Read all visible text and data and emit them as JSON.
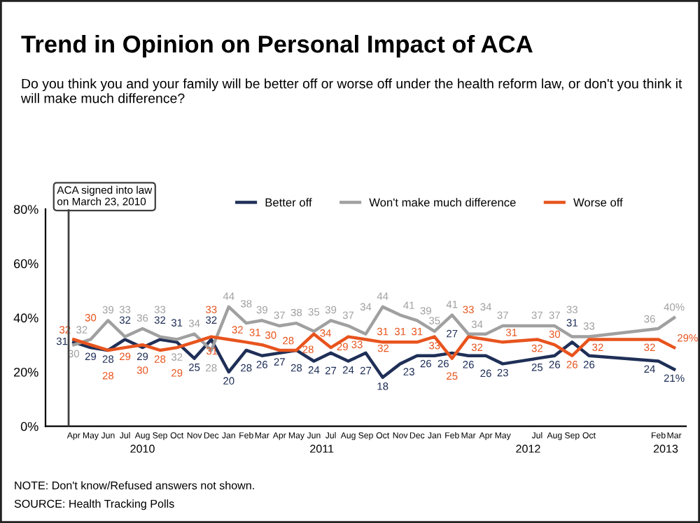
{
  "chart_data": {
    "type": "line",
    "title": "Trend in Opinion on Personal Impact of ACA",
    "subtitle": "Do you think you and your family will be better off or worse off under the health reform law, or don't you think it will make much difference?",
    "x": [
      "2010-04",
      "2010-05",
      "2010-06",
      "2010-07",
      "2010-08",
      "2010-09",
      "2010-10",
      "2010-11",
      "2010-12",
      "2011-01",
      "2011-02",
      "2011-03",
      "2011-04",
      "2011-05",
      "2011-06",
      "2011-07",
      "2011-08",
      "2011-09",
      "2011-10",
      "2011-11",
      "2011-12",
      "2012-01",
      "2012-02",
      "2012-03",
      "2012-04",
      "2012-05",
      "2012-07",
      "2012-08",
      "2012-09",
      "2012-10",
      "2013-02",
      "2013-03"
    ],
    "series": [
      {
        "name": "Better off",
        "color": "#1f2f57",
        "values": [
          31,
          29,
          28,
          32,
          29,
          32,
          31,
          25,
          32,
          20,
          28,
          26,
          27,
          28,
          24,
          27,
          24,
          27,
          18,
          23,
          26,
          26,
          27,
          26,
          26,
          23,
          25,
          26,
          31,
          26,
          24,
          21
        ],
        "value_labels": [
          "31",
          "29",
          "28",
          "32",
          "29",
          "32",
          "31",
          "25",
          "32",
          "20",
          "28",
          "26",
          "27",
          "28",
          "24",
          "27",
          "24",
          "27",
          "18",
          "23",
          "26",
          "26",
          "27",
          "26",
          "26",
          "23",
          "25",
          "26",
          "31",
          "26",
          "24",
          "21%"
        ]
      },
      {
        "name": "Won't make much difference",
        "color": "#a0a0a0",
        "values": [
          30,
          32,
          39,
          33,
          36,
          33,
          32,
          34,
          28,
          44,
          38,
          39,
          37,
          38,
          35,
          39,
          37,
          34,
          44,
          41,
          39,
          35,
          41,
          34,
          34,
          37,
          37,
          37,
          33,
          33,
          36,
          40
        ],
        "value_labels": [
          "30",
          "32",
          "39",
          "33",
          "36",
          "33",
          "32",
          "34",
          "28",
          "44",
          "38",
          "39",
          "37",
          "38",
          "35",
          "39",
          "37",
          "34",
          "44",
          "41",
          "39",
          "35",
          "41",
          "34",
          "34",
          "37",
          "37",
          "37",
          "33",
          "33",
          "36",
          "40%"
        ]
      },
      {
        "name": "Worse off",
        "color": "#e8541e",
        "values": [
          32,
          30,
          28,
          29,
          30,
          28,
          29,
          31,
          33,
          32,
          31,
          30,
          28,
          28,
          34,
          29,
          33,
          32,
          31,
          31,
          31,
          33,
          25,
          33,
          32,
          31,
          32,
          30,
          26,
          32,
          32,
          29
        ],
        "value_labels": [
          "32",
          "30",
          "28",
          "29",
          "30",
          "28",
          "29",
          "31",
          "33",
          "32",
          "31",
          "30",
          "28",
          "28",
          "34",
          "29",
          "33",
          "32",
          "31",
          "31",
          "31",
          "33",
          "25",
          "33",
          "32",
          "31",
          "32",
          "30",
          "26",
          "32",
          "32",
          "29%"
        ]
      }
    ],
    "xlim": [
      "2010-02-10",
      "2013-03-22"
    ],
    "xticks": [
      {
        "value": "2010-04",
        "label": "Apr"
      },
      {
        "value": "2010-05",
        "label": "May"
      },
      {
        "value": "2010-06",
        "label": "Jun"
      },
      {
        "value": "2010-07",
        "label": "Jul"
      },
      {
        "value": "2010-08",
        "label": "Aug"
      },
      {
        "value": "2010-09",
        "label": "Sep"
      },
      {
        "value": "2010-10",
        "label": "Oct"
      },
      {
        "value": "2010-11",
        "label": "Nov"
      },
      {
        "value": "2010-12",
        "label": "Dec"
      },
      {
        "value": "2011-01",
        "label": "Jan"
      },
      {
        "value": "2011-02",
        "label": "Feb"
      },
      {
        "value": "2011-03",
        "label": "Mar"
      },
      {
        "value": "2011-04",
        "label": "Apr"
      },
      {
        "value": "2011-05",
        "label": "May"
      },
      {
        "value": "2011-06",
        "label": "Jun"
      },
      {
        "value": "2011-07",
        "label": "Jul"
      },
      {
        "value": "2011-08",
        "label": "Aug"
      },
      {
        "value": "2011-09",
        "label": "Sep"
      },
      {
        "value": "2011-10",
        "label": "Oct"
      },
      {
        "value": "2011-11",
        "label": "Nov"
      },
      {
        "value": "2011-12",
        "label": "Dec"
      },
      {
        "value": "2012-01",
        "label": "Jan"
      },
      {
        "value": "2012-02",
        "label": "Feb"
      },
      {
        "value": "2012-03",
        "label": "Mar"
      },
      {
        "value": "2012-04",
        "label": "Apr"
      },
      {
        "value": "2012-05",
        "label": "May"
      },
      {
        "value": "2012-07",
        "label": "Jul"
      },
      {
        "value": "2012-08",
        "label": "Aug"
      },
      {
        "value": "2012-09",
        "label": "Sep"
      },
      {
        "value": "2012-10",
        "label": "Oct"
      },
      {
        "value": "2013-02",
        "label": "Feb"
      },
      {
        "value": "2013-03",
        "label": "Mar"
      }
    ],
    "x2lim": [
      "2010-02-10",
      "2013-03-22"
    ],
    "x2ticks": [
      {
        "value": "2010-08-01",
        "label": "2010"
      },
      {
        "value": "2011-06-15",
        "label": "2011"
      },
      {
        "value": "2012-06-15",
        "label": "2012"
      },
      {
        "value": "2013-02-14",
        "label": "2013"
      }
    ],
    "ylim": [
      0,
      80
    ],
    "yticks": [
      {
        "value": 0,
        "label": "0%"
      },
      {
        "value": 20,
        "label": "20%"
      },
      {
        "value": 40,
        "label": "40%"
      },
      {
        "value": 60,
        "label": "60%"
      },
      {
        "value": 80,
        "label": "80%"
      }
    ],
    "ref_lines": [
      {
        "axis": "x",
        "value": "2010-03-23",
        "label": "ACA signed into law\non March 23, 2010",
        "color": "#404040"
      }
    ],
    "legend": "top",
    "grid": false,
    "annotations": [
      "NOTE: Don't know/Refused answers not shown.",
      "SOURCE: Health Tracking Polls"
    ]
  }
}
